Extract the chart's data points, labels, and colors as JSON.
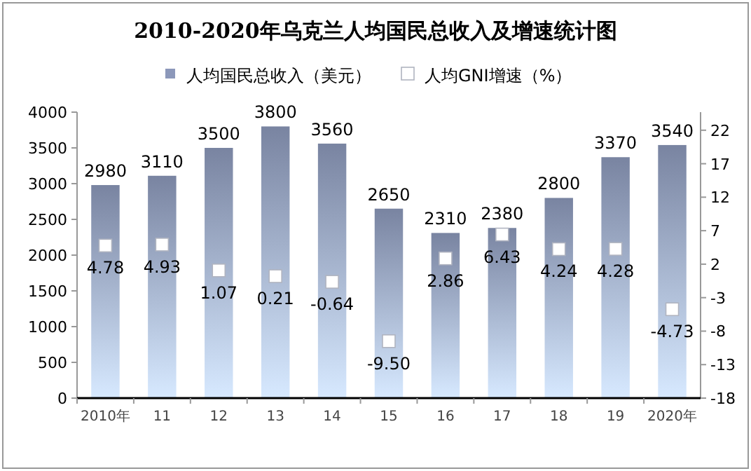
{
  "chart_data": {
    "type": "bar",
    "title": "2010-2020年乌克兰人均国民总收入及增速统计图",
    "categories": [
      "2010年",
      "11",
      "12",
      "13",
      "14",
      "15",
      "16",
      "17",
      "18",
      "19",
      "2020年"
    ],
    "series": [
      {
        "name": "人均国民总收入（美元）",
        "color": "#8c98ba",
        "values": [
          2980,
          3110,
          3500,
          3800,
          3560,
          2650,
          2310,
          2380,
          2800,
          3370,
          3540
        ]
      },
      {
        "name": "人均GNI增速（%）",
        "type": "scatter",
        "axis": "y2",
        "marker": "square",
        "color": "#ffffff",
        "values": [
          4.78,
          4.93,
          1.07,
          0.21,
          -0.64,
          -9.5,
          2.86,
          6.43,
          4.24,
          4.28,
          -4.73
        ],
        "value_labels": [
          "4.78",
          "4.93",
          "1.07",
          "0.21",
          "-0.64",
          "-9.50",
          "2.86",
          "6.43",
          "4.24",
          "4.28",
          "-4.73"
        ]
      }
    ],
    "ylim": [
      0,
      4000
    ],
    "yticks": [
      0,
      500,
      1000,
      1500,
      2000,
      2500,
      3000,
      3500,
      4000
    ],
    "y2lim": [
      -18,
      24.7
    ],
    "y2ticks": [
      -18,
      -13,
      -8,
      -3,
      2,
      7,
      12,
      17,
      22
    ],
    "data_labels": true,
    "legend": "top",
    "grid": false
  }
}
